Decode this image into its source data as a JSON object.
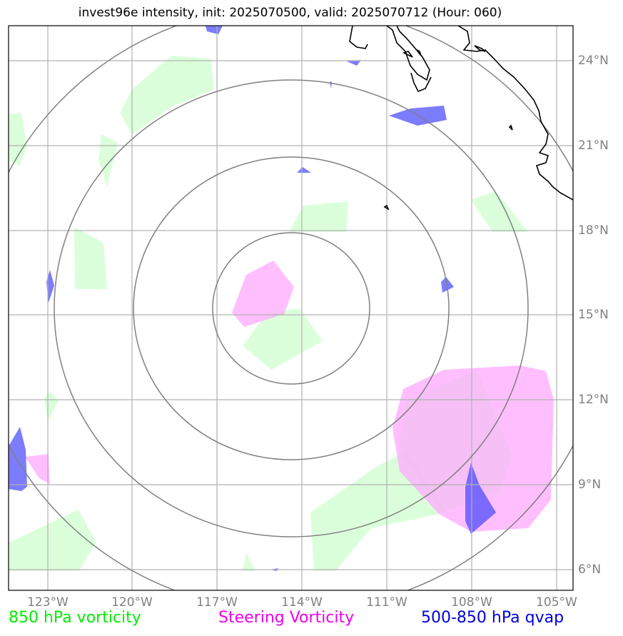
{
  "title": "invest96e intensity, init: 2025070500, valid: 2025070712 (Hour: 060)",
  "map": {
    "lat_labels": [
      "24°N",
      "21°N",
      "18°N",
      "15°N",
      "12°N",
      "9°N",
      "6°N"
    ],
    "lon_labels": [
      "123°W",
      "120°W",
      "117°W",
      "114°W",
      "111°W",
      "108°W",
      "105°W"
    ],
    "range_rings": 4,
    "colors": {
      "vorticity_850": "#ccffcc",
      "steering_vorticity": "#ffaaff",
      "qvap": "#4444ff",
      "ring": "#808080",
      "grid": "#b0b0b0",
      "coast": "#000000"
    }
  },
  "legend": {
    "vorticity_850": {
      "label": "850 hPa vorticity",
      "color": "#00ee00"
    },
    "steering": {
      "label": "Steering Vorticity",
      "color": "#ee00ee"
    },
    "qvap": {
      "label": "500-850 hPa qvap",
      "color": "#0000dd"
    }
  }
}
